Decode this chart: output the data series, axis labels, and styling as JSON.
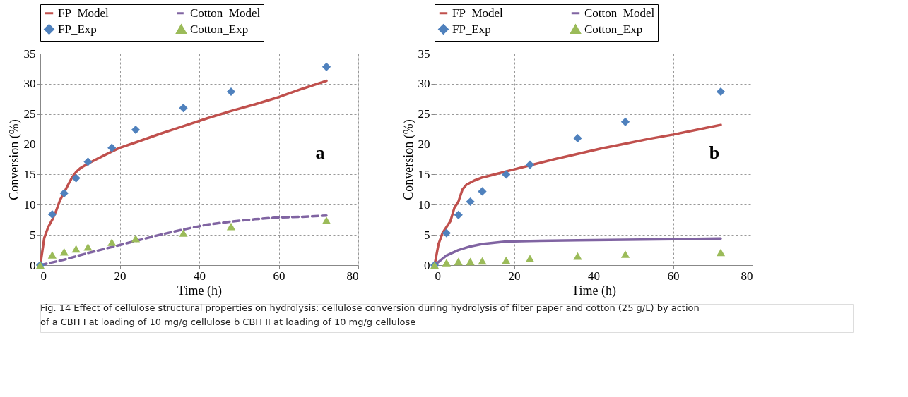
{
  "chart_data": [
    {
      "type": "line",
      "xlabel": "Time (h)",
      "ylabel": "Conversion (%)",
      "xlim": [
        0,
        80
      ],
      "xticks": [
        0,
        20,
        40,
        60,
        80
      ],
      "ylim": [
        0,
        35
      ],
      "yticks": [
        0,
        5,
        10,
        15,
        20,
        25,
        30,
        35
      ],
      "grid": true,
      "legend": "top",
      "annotations": [
        "a",
        "Fig. 14  Effect of cellulose structural properties on hydrolysis: cellulose conversion during hydrolysis of filter paper and cotton (25 g/L) by action of a CBH I at loading of 10 mg/g cellulose b CBH II at loading of 10 mg/g cellulose"
      ],
      "series": [
        {
          "name": "FP_Model",
          "color": "#c0504d",
          "line_style": "solid",
          "marker": "none",
          "x": [
            0,
            1,
            2,
            3,
            4,
            5,
            6,
            7,
            8,
            9,
            10,
            12,
            15,
            18,
            20,
            24,
            30,
            36,
            42,
            48,
            54,
            60,
            66,
            72
          ],
          "values": [
            0,
            4.5,
            6.3,
            7.5,
            9,
            10.8,
            12,
            13.3,
            14.5,
            15.4,
            16,
            16.8,
            17.8,
            18.8,
            19.4,
            20.3,
            21.7,
            23,
            24.3,
            25.5,
            26.6,
            27.8,
            29.2,
            30.5
          ]
        },
        {
          "name": "Cotton_Model",
          "color": "#8064a2",
          "line_style": "dashed",
          "marker": "none",
          "x": [
            0,
            6,
            12,
            18,
            24,
            30,
            36,
            42,
            48,
            54,
            60,
            66,
            72
          ],
          "values": [
            0,
            0.9,
            2,
            3,
            4,
            5,
            5.9,
            6.7,
            7.2,
            7.6,
            7.9,
            8,
            8.2
          ]
        },
        {
          "name": "FP_Exp",
          "type": "scatter",
          "color": "#4f81bd",
          "marker": "diamond",
          "x": [
            0,
            3,
            6,
            9,
            12,
            18,
            24,
            36,
            48,
            72
          ],
          "values": [
            0,
            8.4,
            11.9,
            14.4,
            17.1,
            19.4,
            22.4,
            26.0,
            28.7,
            32.8
          ]
        },
        {
          "name": "Cotton_Exp",
          "type": "scatter",
          "color": "#9bbb59",
          "marker": "triangle",
          "x": [
            0,
            3,
            6,
            9,
            12,
            18,
            24,
            36,
            48,
            72
          ],
          "values": [
            0,
            1.7,
            2.2,
            2.7,
            3.0,
            3.8,
            4.4,
            5.3,
            6.4,
            7.4
          ]
        }
      ]
    },
    {
      "type": "line",
      "xlabel": "Time (h)",
      "ylabel": "Conversion (%)",
      "xlim": [
        0,
        80
      ],
      "xticks": [
        0,
        20,
        40,
        60,
        80
      ],
      "ylim": [
        0,
        35
      ],
      "yticks": [
        0,
        5,
        10,
        15,
        20,
        25,
        30,
        35
      ],
      "grid": true,
      "legend": "top",
      "annotations": [
        "b"
      ],
      "series": [
        {
          "name": "FP_Model",
          "color": "#c0504d",
          "line_style": "solid",
          "marker": "none",
          "x": [
            0,
            1,
            2,
            3,
            4,
            5,
            6,
            7,
            8,
            10,
            12,
            15,
            18,
            24,
            30,
            36,
            42,
            48,
            54,
            60,
            66,
            72
          ],
          "values": [
            0,
            3.5,
            5.3,
            6.3,
            7.3,
            9.5,
            10.5,
            12.5,
            13.3,
            14,
            14.5,
            15,
            15.5,
            16.5,
            17.5,
            18.4,
            19.3,
            20.1,
            20.9,
            21.6,
            22.4,
            23.2
          ]
        },
        {
          "name": "Cotton_Model",
          "color": "#8064a2",
          "line_style": "solid",
          "marker": "none",
          "x": [
            0,
            3,
            6,
            9,
            12,
            18,
            24,
            36,
            48,
            60,
            72
          ],
          "values": [
            0,
            1.6,
            2.5,
            3.1,
            3.5,
            3.9,
            4,
            4.1,
            4.2,
            4.3,
            4.4
          ]
        },
        {
          "name": "FP_Exp",
          "type": "scatter",
          "color": "#4f81bd",
          "marker": "diamond",
          "x": [
            0,
            3,
            6,
            9,
            12,
            18,
            24,
            36,
            48,
            72
          ],
          "values": [
            0,
            5.3,
            8.3,
            10.5,
            12.2,
            15,
            16.6,
            21,
            23.7,
            28.7
          ]
        },
        {
          "name": "Cotton_Exp",
          "type": "scatter",
          "color": "#9bbb59",
          "marker": "triangle",
          "x": [
            0,
            3,
            6,
            9,
            12,
            18,
            24,
            36,
            48,
            72
          ],
          "values": [
            0,
            0.4,
            0.6,
            0.6,
            0.7,
            0.8,
            1.1,
            1.5,
            1.8,
            2.1
          ]
        }
      ]
    }
  ]
}
